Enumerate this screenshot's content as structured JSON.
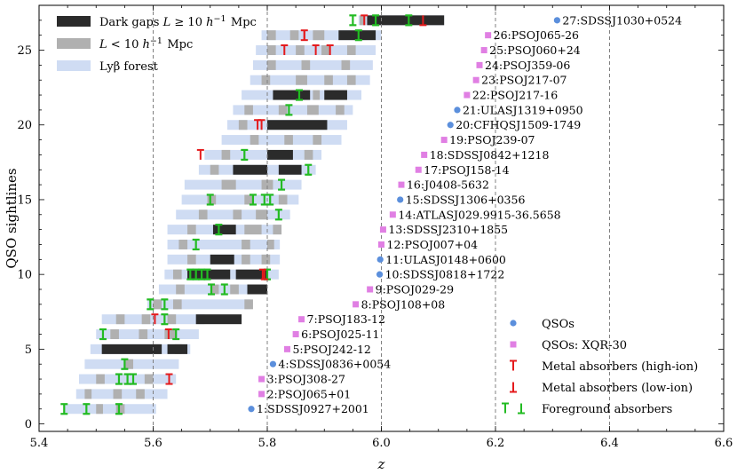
{
  "chart_data": {
    "type": "scatter",
    "xlabel": "z",
    "ylabel": "QSO sightlines",
    "xlim": [
      5.4,
      6.6
    ],
    "ylim": [
      -0.5,
      28
    ],
    "xticks": [
      "5.4",
      "5.6",
      "5.8",
      "6.0",
      "6.2",
      "6.4",
      "6.6"
    ],
    "yticks": [
      "0",
      "5",
      "10",
      "15",
      "20",
      "25"
    ],
    "vlines": [
      5.6,
      5.8,
      6.0,
      6.2,
      6.4
    ],
    "colors": {
      "dark_gap": "#2b2b2b",
      "gap": "#b0b0b0",
      "forest": "#cfdcf3",
      "qso": "#5b8fdc",
      "xqr30": "#e07fe3",
      "metal": "#e41a1c",
      "foreground": "#22bb22"
    },
    "legend_top": {
      "position": "top-left",
      "entries": [
        "Dark gaps $L \\geq 10\\,h^{-1}$ Mpc",
        "$L < 10\\,h^{-1}$ Mpc",
        "Lyβ forest"
      ]
    },
    "legend_bottom": {
      "position": "bottom-right",
      "entries": [
        "QSOs",
        "QSOs: XQR-30",
        "Metal absorbers (high-ion)",
        "Metal absorbers (low-ion)",
        "Foreground absorbers"
      ]
    },
    "quasars": [
      {
        "id": 1,
        "name": "1:SDSSJ0927+2001",
        "z": 5.772,
        "xqr30": false,
        "forest": [
          5.445,
          5.605
        ]
      },
      {
        "id": 2,
        "name": "2:PSOJ065+01",
        "z": 5.79,
        "xqr30": true,
        "forest": [
          5.465,
          5.625
        ]
      },
      {
        "id": 3,
        "name": "3:PSOJ308-27",
        "z": 5.79,
        "xqr30": true,
        "forest": [
          5.47,
          5.64
        ]
      },
      {
        "id": 4,
        "name": "4:SDSSJ0836+0054",
        "z": 5.81,
        "xqr30": false,
        "forest": [
          5.48,
          5.645
        ]
      },
      {
        "id": 5,
        "name": "5:PSOJ242-12",
        "z": 5.835,
        "xqr30": true,
        "forest": [
          5.49,
          5.665
        ]
      },
      {
        "id": 6,
        "name": "6:PSOJ025-11",
        "z": 5.85,
        "xqr30": true,
        "forest": [
          5.5,
          5.68
        ]
      },
      {
        "id": 7,
        "name": "7:PSOJ183-12",
        "z": 5.86,
        "xqr30": true,
        "forest": [
          5.51,
          5.69
        ]
      },
      {
        "id": 8,
        "name": "8:PSOJ108+08",
        "z": 5.955,
        "xqr30": true,
        "forest": [
          5.59,
          5.77
        ]
      },
      {
        "id": 9,
        "name": "9:PSOJ029-29",
        "z": 5.98,
        "xqr30": true,
        "forest": [
          5.61,
          5.8
        ]
      },
      {
        "id": 10,
        "name": "10:SDSSJ0818+1722",
        "z": 5.997,
        "xqr30": false,
        "forest": [
          5.62,
          5.82
        ]
      },
      {
        "id": 11,
        "name": "11:ULASJ0148+0600",
        "z": 5.998,
        "xqr30": false,
        "forest": [
          5.625,
          5.822
        ]
      },
      {
        "id": 12,
        "name": "12:PSOJ007+04",
        "z": 6.0,
        "xqr30": true,
        "forest": [
          5.625,
          5.822
        ]
      },
      {
        "id": 13,
        "name": "13:SDSSJ2310+1855",
        "z": 6.003,
        "xqr30": true,
        "forest": [
          5.625,
          5.824
        ]
      },
      {
        "id": 14,
        "name": "14:ATLASJ029.9915-36.5658",
        "z": 6.02,
        "xqr30": true,
        "forest": [
          5.64,
          5.84
        ]
      },
      {
        "id": 15,
        "name": "15:SDSSJ1306+0356",
        "z": 6.033,
        "xqr30": false,
        "forest": [
          5.65,
          5.855
        ]
      },
      {
        "id": 16,
        "name": "16:J0408-5632",
        "z": 6.035,
        "xqr30": true,
        "forest": [
          5.655,
          5.86
        ]
      },
      {
        "id": 17,
        "name": "17:PSOJ158-14",
        "z": 6.065,
        "xqr30": true,
        "forest": [
          5.68,
          5.885
        ]
      },
      {
        "id": 18,
        "name": "18:SDSSJ0842+1218",
        "z": 6.075,
        "xqr30": true,
        "forest": [
          5.69,
          5.895
        ]
      },
      {
        "id": 19,
        "name": "19:PSOJ239-07",
        "z": 6.11,
        "xqr30": true,
        "forest": [
          5.72,
          5.93
        ]
      },
      {
        "id": 20,
        "name": "20:CFHQSJ1509-1749",
        "z": 6.121,
        "xqr30": false,
        "forest": [
          5.73,
          5.94
        ]
      },
      {
        "id": 21,
        "name": "21:ULASJ1319+0950",
        "z": 6.133,
        "xqr30": false,
        "forest": [
          5.74,
          5.95
        ]
      },
      {
        "id": 22,
        "name": "22:PSOJ217-16",
        "z": 6.15,
        "xqr30": true,
        "forest": [
          5.755,
          5.965
        ]
      },
      {
        "id": 23,
        "name": "23:PSOJ217-07",
        "z": 6.166,
        "xqr30": true,
        "forest": [
          5.77,
          5.98
        ]
      },
      {
        "id": 24,
        "name": "24:PSOJ359-06",
        "z": 6.172,
        "xqr30": true,
        "forest": [
          5.775,
          5.985
        ]
      },
      {
        "id": 25,
        "name": "25:PSOJ060+24",
        "z": 6.18,
        "xqr30": true,
        "forest": [
          5.78,
          5.99
        ]
      },
      {
        "id": 26,
        "name": "26:PSOJ065-26",
        "z": 6.187,
        "xqr30": true,
        "forest": [
          5.79,
          6.0
        ]
      },
      {
        "id": 27,
        "name": "27:SDSSJ1030+0524",
        "z": 6.308,
        "xqr30": false,
        "forest": [
          5.96,
          6.11
        ]
      }
    ],
    "dark_gaps": [
      {
        "sightline": 5,
        "start": 5.51,
        "end": 5.615
      },
      {
        "sightline": 5,
        "start": 5.625,
        "end": 5.66
      },
      {
        "sightline": 7,
        "start": 5.675,
        "end": 5.755
      },
      {
        "sightline": 9,
        "start": 5.765,
        "end": 5.8
      },
      {
        "sightline": 10,
        "start": 5.66,
        "end": 5.735
      },
      {
        "sightline": 10,
        "start": 5.745,
        "end": 5.8
      },
      {
        "sightline": 11,
        "start": 5.7,
        "end": 5.742
      },
      {
        "sightline": 13,
        "start": 5.705,
        "end": 5.745
      },
      {
        "sightline": 17,
        "start": 5.74,
        "end": 5.8
      },
      {
        "sightline": 17,
        "start": 5.82,
        "end": 5.86
      },
      {
        "sightline": 18,
        "start": 5.8,
        "end": 5.845
      },
      {
        "sightline": 20,
        "start": 5.8,
        "end": 5.905
      },
      {
        "sightline": 22,
        "start": 5.81,
        "end": 5.875
      },
      {
        "sightline": 22,
        "start": 5.9,
        "end": 5.94
      },
      {
        "sightline": 26,
        "start": 5.925,
        "end": 5.99
      },
      {
        "sightline": 27,
        "start": 5.975,
        "end": 6.11
      }
    ],
    "short_gaps": [
      {
        "sightline": 1,
        "start": 5.5,
        "end": 5.512
      },
      {
        "sightline": 1,
        "start": 5.535,
        "end": 5.55
      },
      {
        "sightline": 2,
        "start": 5.48,
        "end": 5.492
      },
      {
        "sightline": 2,
        "start": 5.53,
        "end": 5.545
      },
      {
        "sightline": 2,
        "start": 5.57,
        "end": 5.585
      },
      {
        "sightline": 3,
        "start": 5.5,
        "end": 5.515
      },
      {
        "sightline": 3,
        "start": 5.585,
        "end": 5.6
      },
      {
        "sightline": 4,
        "start": 5.55,
        "end": 5.565
      },
      {
        "sightline": 5,
        "start": 5.6,
        "end": 5.612
      },
      {
        "sightline": 5,
        "start": 5.638,
        "end": 5.65
      },
      {
        "sightline": 6,
        "start": 5.525,
        "end": 5.54
      },
      {
        "sightline": 6,
        "start": 5.575,
        "end": 5.59
      },
      {
        "sightline": 6,
        "start": 5.62,
        "end": 5.64
      },
      {
        "sightline": 7,
        "start": 5.535,
        "end": 5.55
      },
      {
        "sightline": 7,
        "start": 5.58,
        "end": 5.595
      },
      {
        "sightline": 7,
        "start": 5.625,
        "end": 5.64
      },
      {
        "sightline": 8,
        "start": 5.6,
        "end": 5.615
      },
      {
        "sightline": 8,
        "start": 5.635,
        "end": 5.65
      },
      {
        "sightline": 8,
        "start": 5.76,
        "end": 5.775
      },
      {
        "sightline": 9,
        "start": 5.64,
        "end": 5.655
      },
      {
        "sightline": 9,
        "start": 5.7,
        "end": 5.715
      },
      {
        "sightline": 9,
        "start": 5.735,
        "end": 5.75
      },
      {
        "sightline": 10,
        "start": 5.635,
        "end": 5.65
      },
      {
        "sightline": 11,
        "start": 5.66,
        "end": 5.675
      },
      {
        "sightline": 11,
        "start": 5.755,
        "end": 5.77
      },
      {
        "sightline": 11,
        "start": 5.79,
        "end": 5.805
      },
      {
        "sightline": 12,
        "start": 5.645,
        "end": 5.66
      },
      {
        "sightline": 12,
        "start": 5.755,
        "end": 5.77
      },
      {
        "sightline": 12,
        "start": 5.8,
        "end": 5.812
      },
      {
        "sightline": 13,
        "start": 5.66,
        "end": 5.675
      },
      {
        "sightline": 13,
        "start": 5.76,
        "end": 5.79
      },
      {
        "sightline": 13,
        "start": 5.81,
        "end": 5.825
      },
      {
        "sightline": 14,
        "start": 5.68,
        "end": 5.695
      },
      {
        "sightline": 14,
        "start": 5.74,
        "end": 5.755
      },
      {
        "sightline": 14,
        "start": 5.78,
        "end": 5.8
      },
      {
        "sightline": 15,
        "start": 5.695,
        "end": 5.71
      },
      {
        "sightline": 15,
        "start": 5.76,
        "end": 5.775
      },
      {
        "sightline": 15,
        "start": 5.82,
        "end": 5.835
      },
      {
        "sightline": 16,
        "start": 5.72,
        "end": 5.745
      },
      {
        "sightline": 16,
        "start": 5.79,
        "end": 5.81
      },
      {
        "sightline": 17,
        "start": 5.7,
        "end": 5.715
      },
      {
        "sightline": 18,
        "start": 5.72,
        "end": 5.735
      },
      {
        "sightline": 18,
        "start": 5.865,
        "end": 5.88
      },
      {
        "sightline": 19,
        "start": 5.77,
        "end": 5.785
      },
      {
        "sightline": 19,
        "start": 5.83,
        "end": 5.845
      },
      {
        "sightline": 19,
        "start": 5.88,
        "end": 5.895
      },
      {
        "sightline": 20,
        "start": 5.75,
        "end": 5.765
      },
      {
        "sightline": 21,
        "start": 5.76,
        "end": 5.775
      },
      {
        "sightline": 21,
        "start": 5.82,
        "end": 5.835
      },
      {
        "sightline": 21,
        "start": 5.87,
        "end": 5.89
      },
      {
        "sightline": 21,
        "start": 5.92,
        "end": 5.935
      },
      {
        "sightline": 22,
        "start": 5.88,
        "end": 5.892
      },
      {
        "sightline": 23,
        "start": 5.79,
        "end": 5.805
      },
      {
        "sightline": 23,
        "start": 5.85,
        "end": 5.87
      },
      {
        "sightline": 23,
        "start": 5.9,
        "end": 5.915
      },
      {
        "sightline": 23,
        "start": 5.94,
        "end": 5.955
      },
      {
        "sightline": 24,
        "start": 5.8,
        "end": 5.815
      },
      {
        "sightline": 24,
        "start": 5.86,
        "end": 5.875
      },
      {
        "sightline": 24,
        "start": 5.93,
        "end": 5.945
      },
      {
        "sightline": 25,
        "start": 5.8,
        "end": 5.815
      },
      {
        "sightline": 25,
        "start": 5.85,
        "end": 5.865
      },
      {
        "sightline": 25,
        "start": 5.895,
        "end": 5.91
      },
      {
        "sightline": 25,
        "start": 5.94,
        "end": 5.955
      },
      {
        "sightline": 26,
        "start": 5.8,
        "end": 5.815
      },
      {
        "sightline": 26,
        "start": 5.84,
        "end": 5.855
      },
      {
        "sightline": 26,
        "start": 5.88,
        "end": 5.9
      },
      {
        "sightline": 27,
        "start": 5.962,
        "end": 5.972
      }
    ],
    "metal_high_ion": [
      {
        "sightline": 3,
        "z": 5.628
      },
      {
        "sightline": 6,
        "z": 5.627
      },
      {
        "sightline": 7,
        "z": 5.603
      },
      {
        "sightline": 10,
        "z": 5.792
      },
      {
        "sightline": 18,
        "z": 5.683
      },
      {
        "sightline": 20,
        "z": 5.783
      },
      {
        "sightline": 20,
        "z": 5.79
      },
      {
        "sightline": 25,
        "z": 5.83
      },
      {
        "sightline": 25,
        "z": 5.885
      },
      {
        "sightline": 25,
        "z": 5.91
      },
      {
        "sightline": 26,
        "z": 5.865
      },
      {
        "sightline": 27,
        "z": 5.97
      }
    ],
    "metal_low_ion": [
      {
        "sightline": 3,
        "z": 5.628
      },
      {
        "sightline": 10,
        "z": 5.795
      },
      {
        "sightline": 26,
        "z": 5.865
      },
      {
        "sightline": 27,
        "z": 6.073
      }
    ],
    "foreground": [
      {
        "sightline": 1,
        "z": 5.444
      },
      {
        "sightline": 1,
        "z": 5.483
      },
      {
        "sightline": 1,
        "z": 5.54
      },
      {
        "sightline": 3,
        "z": 5.54
      },
      {
        "sightline": 3,
        "z": 5.555
      },
      {
        "sightline": 3,
        "z": 5.565
      },
      {
        "sightline": 4,
        "z": 5.55
      },
      {
        "sightline": 6,
        "z": 5.512
      },
      {
        "sightline": 6,
        "z": 5.64
      },
      {
        "sightline": 7,
        "z": 5.62
      },
      {
        "sightline": 8,
        "z": 5.595
      },
      {
        "sightline": 8,
        "z": 5.62
      },
      {
        "sightline": 9,
        "z": 5.702
      },
      {
        "sightline": 9,
        "z": 5.725
      },
      {
        "sightline": 10,
        "z": 5.665
      },
      {
        "sightline": 10,
        "z": 5.675
      },
      {
        "sightline": 10,
        "z": 5.685
      },
      {
        "sightline": 10,
        "z": 5.695
      },
      {
        "sightline": 10,
        "z": 5.8
      },
      {
        "sightline": 12,
        "z": 5.675
      },
      {
        "sightline": 13,
        "z": 5.715
      },
      {
        "sightline": 14,
        "z": 5.82
      },
      {
        "sightline": 15,
        "z": 5.7
      },
      {
        "sightline": 15,
        "z": 5.775
      },
      {
        "sightline": 15,
        "z": 5.795
      },
      {
        "sightline": 15,
        "z": 5.805
      },
      {
        "sightline": 16,
        "z": 5.825
      },
      {
        "sightline": 17,
        "z": 5.872
      },
      {
        "sightline": 18,
        "z": 5.76
      },
      {
        "sightline": 21,
        "z": 5.838
      },
      {
        "sightline": 22,
        "z": 5.856
      },
      {
        "sightline": 26,
        "z": 5.96
      },
      {
        "sightline": 27,
        "z": 5.95
      },
      {
        "sightline": 27,
        "z": 5.99
      },
      {
        "sightline": 27,
        "z": 6.048
      }
    ]
  }
}
